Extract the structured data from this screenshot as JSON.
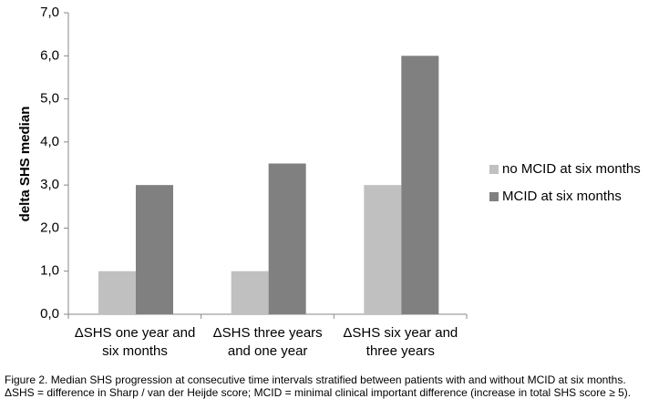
{
  "chart_data": {
    "type": "bar",
    "y_label": "delta SHS median",
    "categories": [
      "ΔSHS one year and six months",
      "ΔSHS three years and one year",
      "ΔSHS six year and three years"
    ],
    "series": [
      {
        "name": "no MCID at six months",
        "color": "#c0c0c0",
        "values": [
          1.0,
          1.0,
          3.0
        ]
      },
      {
        "name": "MCID at six months",
        "color": "#808080",
        "values": [
          3.0,
          3.5,
          6.0
        ]
      }
    ],
    "ylim": [
      0,
      7
    ],
    "yticks": [
      {
        "value": 0,
        "label": "0,0"
      },
      {
        "value": 1,
        "label": "1,0"
      },
      {
        "value": 2,
        "label": "2,0"
      },
      {
        "value": 3,
        "label": "3,0"
      },
      {
        "value": 4,
        "label": "4,0"
      },
      {
        "value": 5,
        "label": "5,0"
      },
      {
        "value": 6,
        "label": "6,0"
      },
      {
        "value": 7,
        "label": "7,0"
      }
    ],
    "grid": false,
    "legend": "right",
    "caption": "Figure 2. Median SHS progression at consecutive time intervals stratified between patients with and without MCID at six months. ΔSHS = difference in Sharp / van der Heijde score; MCID = minimal clinical important difference (increase in total SHS score ≥ 5)."
  }
}
